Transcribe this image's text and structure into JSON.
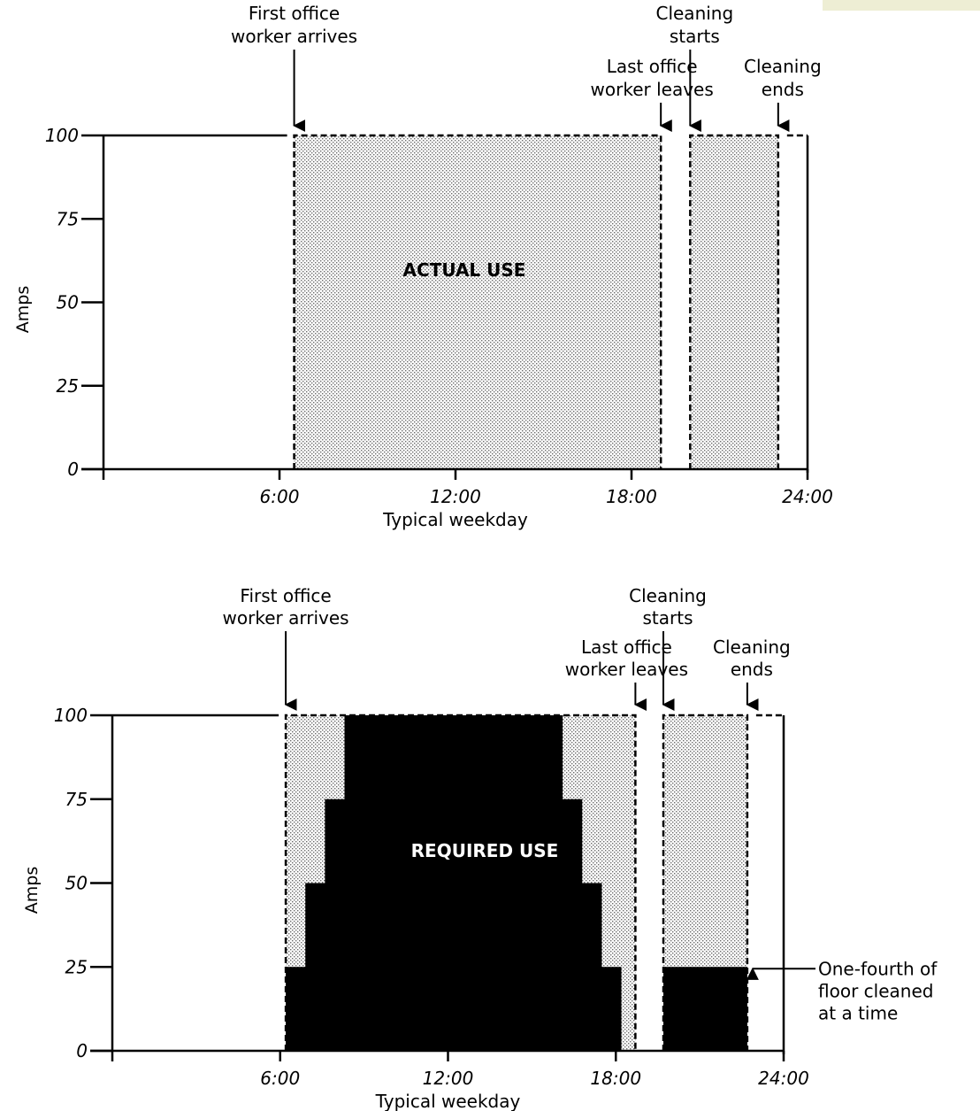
{
  "colors": {
    "shade": "#d8d8d8",
    "required": "#000000",
    "corner": "#eeeed4"
  },
  "chart_data": [
    {
      "type": "area",
      "ylabel": "Amps",
      "xlabel": "Typical weekday",
      "xlim": [
        0,
        24
      ],
      "ylim": [
        0,
        100
      ],
      "xticks": [
        "6:00",
        "12:00",
        "18:00",
        "24:00"
      ],
      "yticks": [
        "0",
        "25",
        "50",
        "75",
        "100"
      ],
      "center_label": "ACTUAL USE",
      "series": [
        {
          "kind": "shaded",
          "points": [
            [
              6.5,
              100
            ],
            [
              19.0,
              100
            ]
          ]
        },
        {
          "kind": "shaded",
          "points": [
            [
              20.0,
              100
            ],
            [
              23.0,
              100
            ]
          ]
        }
      ],
      "annotations": [
        {
          "text": [
            "First office",
            "worker arrives"
          ],
          "x": 6.5
        },
        {
          "text": [
            "Last office",
            "worker leaves"
          ],
          "x": 19.0
        },
        {
          "text": [
            "Cleaning",
            "starts"
          ],
          "x": 20.0
        },
        {
          "text": [
            "Cleaning",
            "ends"
          ],
          "x": 23.0
        }
      ]
    },
    {
      "type": "area",
      "ylabel": "Amps",
      "xlabel": "Typical weekday",
      "xlim": [
        0,
        24
      ],
      "ylim": [
        0,
        100
      ],
      "xticks": [
        "6:00",
        "12:00",
        "18:00",
        "24:00"
      ],
      "yticks": [
        "0",
        "25",
        "50",
        "75",
        "100"
      ],
      "center_label": "REQUIRED USE",
      "series": [
        {
          "kind": "shaded",
          "points": [
            [
              6.2,
              100
            ],
            [
              18.7,
              100
            ]
          ]
        },
        {
          "kind": "shaded",
          "points": [
            [
              19.7,
              100
            ],
            [
              22.7,
              100
            ]
          ]
        },
        {
          "kind": "required",
          "steps": [
            [
              6.2,
              25
            ],
            [
              6.9,
              50
            ],
            [
              7.6,
              75
            ],
            [
              8.3,
              100
            ],
            [
              16.1,
              75
            ],
            [
              16.8,
              50
            ],
            [
              17.5,
              25
            ],
            [
              18.2,
              0
            ],
            [
              18.7,
              0
            ]
          ]
        },
        {
          "kind": "required",
          "steps": [
            [
              19.7,
              25
            ],
            [
              22.7,
              0
            ]
          ]
        }
      ],
      "annotations": [
        {
          "text": [
            "First office",
            "worker arrives"
          ],
          "x": 6.2
        },
        {
          "text": [
            "Last office",
            "worker leaves"
          ],
          "x": 18.7
        },
        {
          "text": [
            "Cleaning",
            "starts"
          ],
          "x": 19.7
        },
        {
          "text": [
            "Cleaning",
            "ends"
          ],
          "x": 22.7
        },
        {
          "text": [
            "One-fourth of",
            "floor cleaned",
            "at a time"
          ],
          "x": 22.7,
          "y": 25
        }
      ]
    }
  ]
}
